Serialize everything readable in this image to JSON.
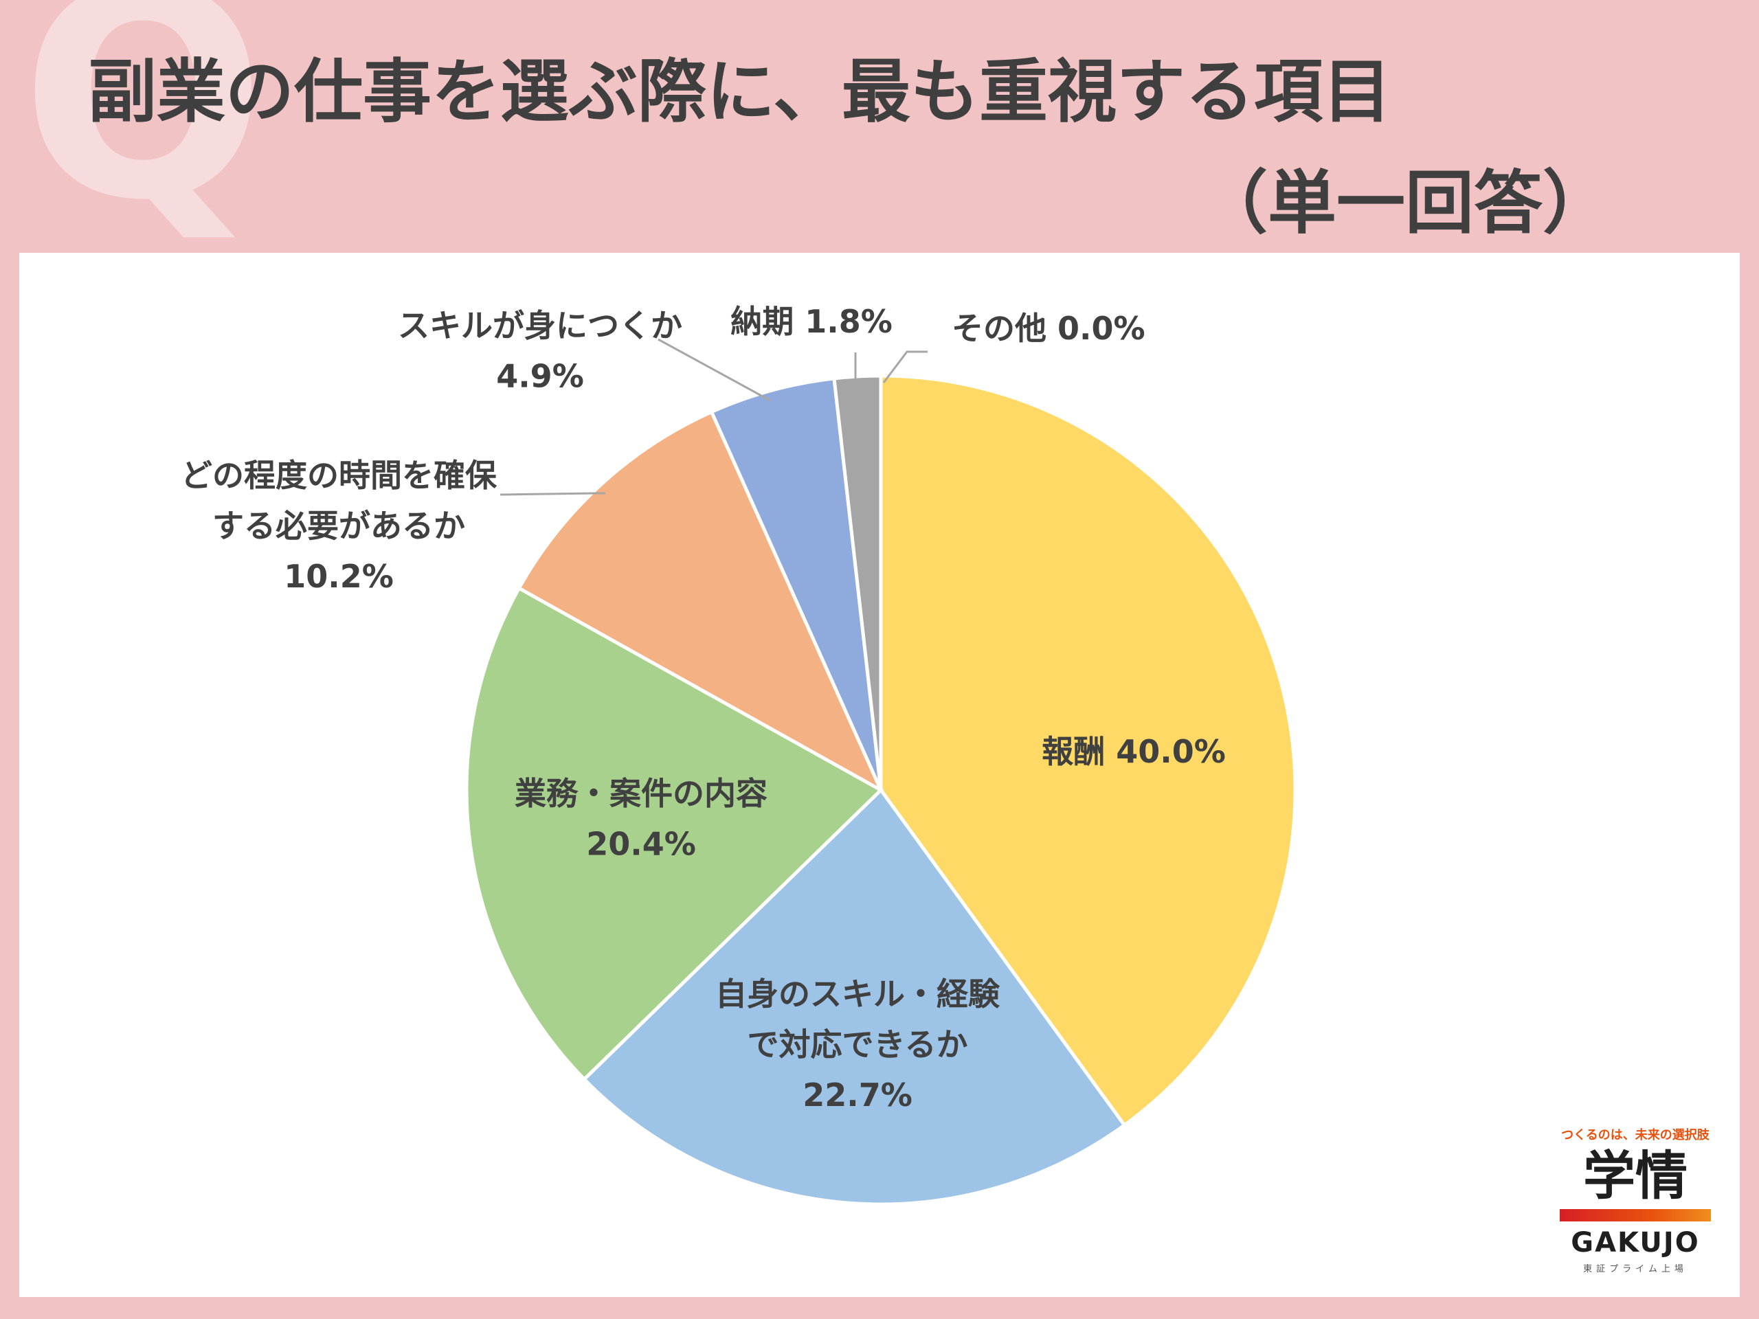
{
  "header": {
    "q_mark": "Q",
    "title": "副業の仕事を選ぶ際に、最も重視する項目",
    "subtitle": "（単一回答）",
    "background": "#f1c3c4"
  },
  "chart_data": {
    "type": "pie",
    "start": "12 o'clock, clockwise",
    "slices": [
      {
        "label_lines": [
          "報酬 40.0%"
        ],
        "label": "報酬",
        "value": 40.0,
        "value_text": "40.0%",
        "color": "#ffd966",
        "label_place": "inside"
      },
      {
        "label_lines": [
          "自身のスキル・経験",
          "で対応できるか",
          "22.7%"
        ],
        "label": "自身のスキル・経験で対応できるか",
        "value": 22.7,
        "value_text": "22.7%",
        "color": "#9dc3e6",
        "label_place": "inside"
      },
      {
        "label_lines": [
          "業務・案件の内容",
          "20.4%"
        ],
        "label": "業務・案件の内容",
        "value": 20.4,
        "value_text": "20.4%",
        "color": "#a9d18e",
        "label_place": "inside"
      },
      {
        "label_lines": [
          "どの程度の時間を確保",
          "する必要があるか",
          "10.2%"
        ],
        "label": "どの程度の時間を確保する必要があるか",
        "value": 10.2,
        "value_text": "10.2%",
        "color": "#f4b183",
        "label_place": "outside"
      },
      {
        "label_lines": [
          "スキルが身につくか",
          "4.9%"
        ],
        "label": "スキルが身につくか",
        "value": 4.9,
        "value_text": "4.9%",
        "color": "#8faadc",
        "label_place": "outside"
      },
      {
        "label_lines": [
          "納期 1.8%"
        ],
        "label": "納期",
        "value": 1.8,
        "value_text": "1.8%",
        "color": "#a5a5a5",
        "label_place": "outside"
      },
      {
        "label_lines": [
          "その他 0.0%"
        ],
        "label": "その他",
        "value": 0.0,
        "value_text": "0.0%",
        "color": "#a5a5a5",
        "label_place": "outside"
      }
    ]
  },
  "logo": {
    "tagline": "つくるのは、未来の選択肢",
    "kanji": "学情",
    "roman": "GAKUJO",
    "market": "東証プライム上場"
  }
}
